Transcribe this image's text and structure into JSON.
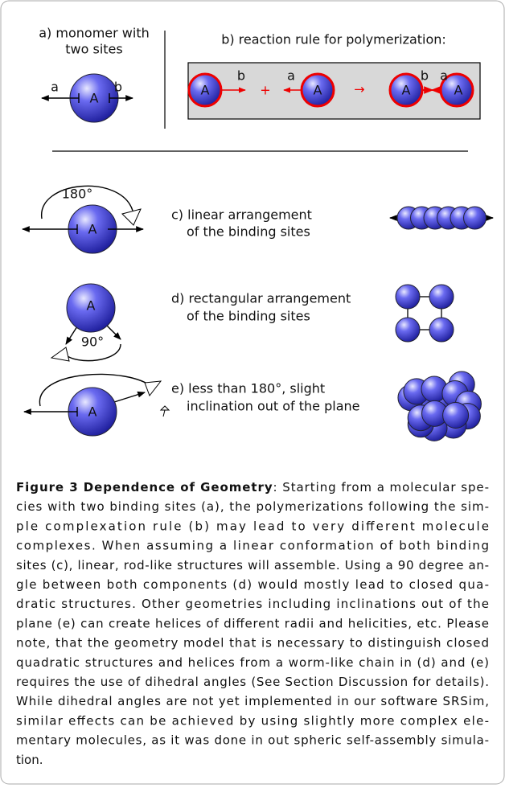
{
  "panels": {
    "a": {
      "title_lines": [
        "a) monomer with",
        "two sites"
      ],
      "site_left": "a",
      "site_right": "b",
      "molecule": "A"
    },
    "b": {
      "title": "b) reaction rule for polymerization:",
      "mol1": "A",
      "mol1_site": "b",
      "plus": "+",
      "mol2_site": "a",
      "mol2": "A",
      "arrow": "→",
      "mol3": "A",
      "mol3_site": "b",
      "mol4_site": "a",
      "mol4": "A"
    },
    "c": {
      "angle": "180°",
      "molecule": "A",
      "text_lines": [
        "c) linear arrangement",
        "of the binding sites"
      ]
    },
    "d": {
      "angle": "90°",
      "molecule": "A",
      "text_lines": [
        "d) rectangular arrangement",
        "of the binding sites"
      ]
    },
    "e": {
      "molecule": "A",
      "text_lines": [
        "e) less than 180°, slight",
        "inclination out of the plane"
      ]
    }
  },
  "caption": {
    "title": "Figure 3 Dependence of Geometry",
    "lines": [
      ": Starting from a molecular spe-",
      "cies with two binding sites (a), the polymerizations following the sim-",
      "ple complexation rule (b) may lead to very different molecule",
      "complexes. When assuming a linear conformation of both binding",
      "sites (c), linear, rod-like structures will assemble. Using a 90 degree an-",
      "gle between both components (d) would mostly lead to closed qua-",
      "dratic structures. Other geometries including inclinations out of the",
      "plane (e) can create helices of different radii and helicities, etc. Please",
      "note, that the geometry model that is necessary to distinguish closed",
      "quadratic structures and helices from a worm-like chain in (d) and (e)",
      "requires the use of dihedral angles (See Section Discussion for details).",
      "While dihedral angles are not yet implemented in our software SRSim,",
      "similar effects can be achieved by using slightly more complex ele-",
      "mentary molecules, as it was done in out spheric self-assembly simula-",
      "tion."
    ]
  }
}
